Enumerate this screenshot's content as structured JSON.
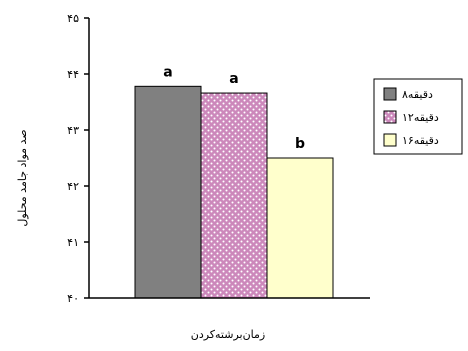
{
  "chart_data": {
    "type": "bar",
    "title": "",
    "xlabel": "زمان‌برشته‌کردن",
    "ylabel": "صد مواد جامد محلول",
    "ylim": [
      40,
      45
    ],
    "yticks": [
      {
        "value": 40,
        "label": "۴۰"
      },
      {
        "value": 41,
        "label": "۴۱"
      },
      {
        "value": 42,
        "label": "۴۲"
      },
      {
        "value": 43,
        "label": "۴۳"
      },
      {
        "value": 44,
        "label": "۴۴"
      },
      {
        "value": 45,
        "label": "۴۵"
      }
    ],
    "grid": false,
    "legend_position": "right",
    "series": [
      {
        "name": "۸دقیقه",
        "value": 43.78,
        "sig_label": "a",
        "color": "#808080",
        "pattern": "solid"
      },
      {
        "name": "۱۲دقیقه",
        "value": 43.66,
        "sig_label": "a",
        "color": "#cc99cc",
        "pattern": "dots"
      },
      {
        "name": "۱۶دقیقه",
        "value": 42.5,
        "sig_label": "b",
        "color": "#ffffcc",
        "pattern": "solid"
      }
    ]
  }
}
